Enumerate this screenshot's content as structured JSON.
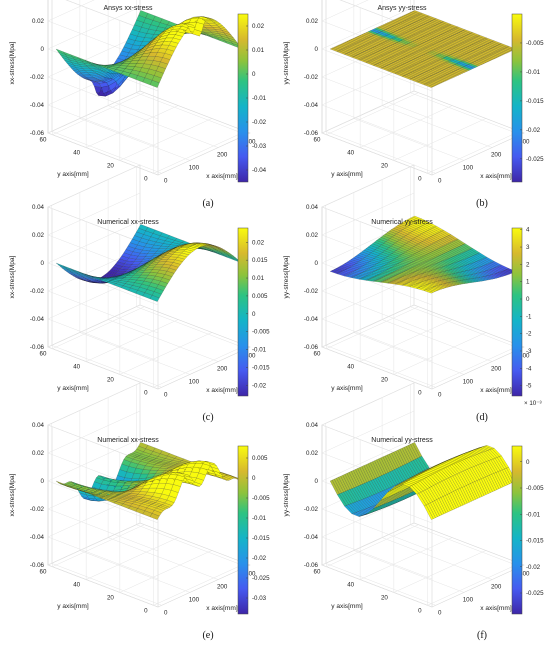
{
  "chart_data": [
    {
      "type": "surface",
      "title": "Ansys xx-stress",
      "caption": "(a)",
      "xlabel": "x axis[mm]",
      "ylabel": "y axis[mm]",
      "zlabel": "xx-stress[Mpa]",
      "x_ticks": [
        "0",
        "100",
        "200",
        "300"
      ],
      "y_ticks": [
        "0",
        "20",
        "40",
        "60"
      ],
      "z_ticks": [
        "-0.06",
        "-0.04",
        "-0.02",
        "0",
        "0.02",
        "0.04"
      ],
      "zlim": [
        -0.06,
        0.04
      ],
      "colorbar": {
        "ticks": [
          "0.02",
          "0.01",
          "0",
          "-0.01",
          "-0.02",
          "-0.03",
          "-0.04"
        ],
        "min": -0.045,
        "max": 0.025,
        "exponent": ""
      },
      "surface": {
        "shape": "antisym",
        "amp": 0.035,
        "edge": 0.006
      }
    },
    {
      "type": "surface",
      "title": "Ansys yy-stress",
      "caption": "(b)",
      "xlabel": "x axis[mm]",
      "ylabel": "y axis[mm]",
      "zlabel": "yy-stress[Mpa]",
      "x_ticks": [
        "0",
        "100",
        "200",
        "300"
      ],
      "y_ticks": [
        "0",
        "20",
        "40",
        "60"
      ],
      "z_ticks": [
        "-0.06",
        "-0.04",
        "-0.02",
        "0",
        "0.02",
        "0.04"
      ],
      "zlim": [
        -0.06,
        0.04
      ],
      "colorbar": {
        "ticks": [
          "-0.005",
          "-0.01",
          "-0.015",
          "-0.02",
          "-0.025"
        ],
        "min": -0.029,
        "max": 0.0,
        "exponent": ""
      },
      "surface": {
        "shape": "flat",
        "amp": 0.0,
        "edge": 0.0
      }
    },
    {
      "type": "surface",
      "title": "Numerical xx-stress",
      "caption": "(c)",
      "xlabel": "x axis[mm]",
      "ylabel": "y axis[mm]",
      "zlabel": "xx-stress[Mpa]",
      "x_ticks": [
        "0",
        "100",
        "200",
        "300"
      ],
      "y_ticks": [
        "0",
        "20",
        "40",
        "60"
      ],
      "z_ticks": [
        "-0.06",
        "-0.04",
        "-0.02",
        "0",
        "0.02",
        "0.04"
      ],
      "zlim": [
        -0.06,
        0.04
      ],
      "colorbar": {
        "ticks": [
          "0.02",
          "0.015",
          "0.01",
          "0.005",
          "0",
          "-0.005",
          "-0.01",
          "-0.015",
          "-0.02"
        ],
        "min": -0.023,
        "max": 0.024,
        "exponent": ""
      },
      "surface": {
        "shape": "antisym",
        "amp": 0.025,
        "edge": 0.0
      }
    },
    {
      "type": "surface",
      "title": "Numerical yy-stress",
      "caption": "(d)",
      "xlabel": "x axis[mm]",
      "ylabel": "y axis[mm]",
      "zlabel": "yy-stress[Mpa]",
      "x_ticks": [
        "0",
        "100",
        "200",
        "300"
      ],
      "y_ticks": [
        "0",
        "20",
        "40",
        "60"
      ],
      "z_ticks": [
        "-0.06",
        "-0.04",
        "-0.02",
        "0",
        "0.02",
        "0.04"
      ],
      "zlim": [
        -0.06,
        0.04
      ],
      "colorbar": {
        "ticks": [
          "4",
          "3",
          "2",
          "1",
          "0",
          "-1",
          "-2",
          "-3",
          "-4",
          "-5"
        ],
        "min": -5.6,
        "max": 4.1,
        "exponent": "× 10⁻³"
      },
      "surface": {
        "shape": "saddle",
        "amp": 0.006,
        "edge": 0.0
      }
    },
    {
      "type": "surface",
      "title": "Numerical xx-stress",
      "caption": "(e)",
      "xlabel": "x axis[mm]",
      "ylabel": "y axis[mm]",
      "zlabel": "xx-stress[Mpa]",
      "x_ticks": [
        "0",
        "100",
        "200",
        "300"
      ],
      "y_ticks": [
        "0",
        "20",
        "40",
        "60"
      ],
      "z_ticks": [
        "-0.06",
        "-0.04",
        "-0.02",
        "0",
        "0.02",
        "0.04"
      ],
      "zlim": [
        -0.06,
        0.04
      ],
      "colorbar": {
        "ticks": [
          "0.005",
          "0",
          "-0.005",
          "-0.01",
          "-0.015",
          "-0.02",
          "-0.025",
          "-0.03"
        ],
        "min": -0.034,
        "max": 0.008,
        "exponent": ""
      },
      "surface": {
        "shape": "antisym-wavy",
        "amp": 0.022,
        "edge": 0.0
      }
    },
    {
      "type": "surface",
      "title": "Numerical yy-stress",
      "caption": "(f)",
      "xlabel": "x axis[mm]",
      "ylabel": "y axis[mm]",
      "zlabel": "yy-stress[Mpa]",
      "x_ticks": [
        "0",
        "100",
        "200",
        "300"
      ],
      "y_ticks": [
        "0",
        "20",
        "40",
        "60"
      ],
      "z_ticks": [
        "-0.06",
        "-0.04",
        "-0.02",
        "0",
        "0.02",
        "0.04"
      ],
      "zlim": [
        -0.06,
        0.04
      ],
      "colorbar": {
        "ticks": [
          "0",
          "-0.005",
          "-0.01",
          "-0.015",
          "-0.02",
          "-0.025"
        ],
        "min": -0.029,
        "max": 0.003,
        "exponent": ""
      },
      "surface": {
        "shape": "wave",
        "amp": 0.02,
        "edge": 0.0
      }
    }
  ]
}
